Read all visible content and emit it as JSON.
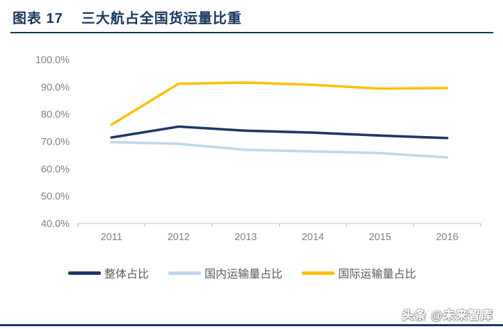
{
  "header": {
    "figure_label": "图表 17",
    "title": "三大航占全国货运量比重"
  },
  "watermark": "头条 @未来智库",
  "colors": {
    "accent": "#17365D",
    "axis_text": "#808080",
    "legend_text": "#595959",
    "axis_line": "#D9D9D9"
  },
  "chart_data": {
    "type": "line",
    "title": "图表 17 三大航占全国货运量比重",
    "categories": [
      "2011",
      "2012",
      "2013",
      "2014",
      "2015",
      "2016"
    ],
    "series": [
      {
        "name": "整体占比",
        "color": "#1F3864",
        "values": [
          71.5,
          75.5,
          74.0,
          73.3,
          72.2,
          71.3
        ]
      },
      {
        "name": "国内运输量占比",
        "color": "#BDD7EE",
        "values": [
          69.8,
          69.2,
          67.0,
          66.4,
          65.8,
          64.2
        ]
      },
      {
        "name": "国际运输量占比",
        "color": "#FFC000",
        "values": [
          76.2,
          91.2,
          91.6,
          90.8,
          89.4,
          89.6
        ]
      }
    ],
    "ylim": [
      40,
      100
    ],
    "y_tick_labels": [
      "100.0%",
      "90.0%",
      "80.0%",
      "70.0%",
      "60.0%",
      "50.0%",
      "40.0%"
    ],
    "y_tick_values": [
      100,
      90,
      80,
      70,
      60,
      50,
      40
    ],
    "xlabel": "",
    "ylabel": "",
    "grid": false,
    "legend_position": "bottom"
  }
}
